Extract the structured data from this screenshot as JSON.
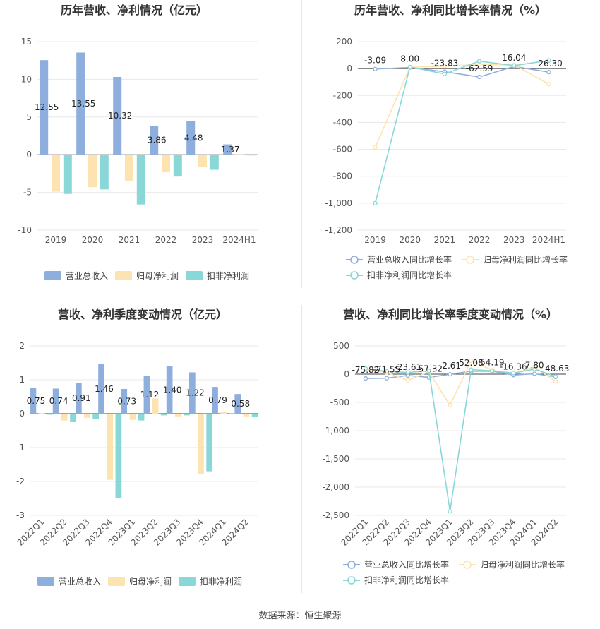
{
  "footer": "数据来源：恒生聚源",
  "colors": {
    "revenue": "#8eaede",
    "net_profit": "#fde3b0",
    "deducted_profit": "#8ad7d7",
    "grid": "#e8e8e8",
    "axis": "#555555"
  },
  "chart_data": [
    {
      "type": "bar",
      "title": "历年营收、净利情况（亿元）",
      "categories": [
        "2019",
        "2020",
        "2021",
        "2022",
        "2023",
        "2024H1"
      ],
      "series": [
        {
          "name": "营业总收入",
          "values": [
            12.55,
            13.55,
            10.32,
            3.86,
            4.48,
            1.37
          ],
          "labels": [
            "12.55",
            "13.55",
            "10.32",
            "3.86",
            "4.48",
            "1.37"
          ]
        },
        {
          "name": "归母净利润",
          "values": [
            -4.9,
            -4.3,
            -3.5,
            -2.3,
            -1.6,
            0.05
          ]
        },
        {
          "name": "扣非净利润",
          "values": [
            -5.2,
            -4.6,
            -6.6,
            -2.9,
            -2.0,
            -0.05
          ]
        }
      ],
      "ylim": [
        -10,
        15
      ],
      "yticks": [
        "-10",
        "-5",
        "0",
        "5",
        "10",
        "15"
      ],
      "legend": [
        "营业总收入",
        "归母净利润",
        "扣非净利润"
      ]
    },
    {
      "type": "line",
      "title": "历年营收、净利同比增长率情况（%）",
      "categories": [
        "2019",
        "2020",
        "2021",
        "2022",
        "2023",
        "2024H1"
      ],
      "series": [
        {
          "name": "营业总收入同比增长率",
          "values": [
            -3.09,
            8.0,
            -23.83,
            -62.59,
            16.04,
            -26.3
          ],
          "labels": [
            "-3.09",
            "8.00",
            "-23.83",
            "-62.59",
            "16.04",
            "-26.30"
          ]
        },
        {
          "name": "归母净利润同比增长率",
          "values": [
            -585,
            10,
            18,
            30,
            27,
            -115
          ]
        },
        {
          "name": "扣非净利润同比增长率",
          "values": [
            -1000,
            12,
            -40,
            55,
            22,
            60
          ]
        }
      ],
      "ylim": [
        -1200,
        200
      ],
      "yticks": [
        "-1,200",
        "-1,000",
        "-800",
        "-600",
        "-400",
        "-200",
        "0",
        "200"
      ],
      "legend": [
        "营业总收入同比增长率",
        "归母净利润同比增长率",
        "扣非净利润同比增长率"
      ]
    },
    {
      "type": "bar",
      "title": "营收、净利季度变动情况（亿元）",
      "categories": [
        "2022Q1",
        "2022Q2",
        "2022Q3",
        "2022Q4",
        "2023Q1",
        "2023Q2",
        "2023Q3",
        "2023Q4",
        "2024Q1",
        "2024Q2"
      ],
      "series": [
        {
          "name": "营业总收入",
          "values": [
            0.75,
            0.74,
            0.91,
            1.46,
            0.73,
            1.12,
            1.4,
            1.22,
            0.79,
            0.58
          ],
          "labels": [
            "0.75",
            "0.74",
            "0.91",
            "1.46",
            "0.73",
            "1.12",
            "1.40",
            "1.22",
            "0.79",
            "0.58"
          ]
        },
        {
          "name": "归母净利润",
          "values": [
            0.02,
            -0.2,
            -0.12,
            -1.95,
            -0.18,
            0.45,
            -0.08,
            -1.77,
            0.05,
            -0.08
          ]
        },
        {
          "name": "扣非净利润",
          "values": [
            -0.03,
            -0.25,
            -0.15,
            -2.5,
            -0.2,
            -0.05,
            -0.05,
            -1.7,
            0.02,
            -0.1
          ]
        }
      ],
      "ylim": [
        -3,
        2
      ],
      "yticks": [
        "-3",
        "-2",
        "-1",
        "0",
        "1",
        "2"
      ],
      "legend": [
        "营业总收入",
        "归母净利润",
        "扣非净利润"
      ]
    },
    {
      "type": "line",
      "title": "营收、净利同比增长率季度变动情况（%）",
      "categories": [
        "2022Q1",
        "2022Q2",
        "2022Q3",
        "2022Q4",
        "2023Q1",
        "2023Q2",
        "2023Q3",
        "2023Q4",
        "2024Q1",
        "2024Q2"
      ],
      "series": [
        {
          "name": "营业总收入同比增长率",
          "values": [
            -75.82,
            -71.55,
            -23.61,
            -57.32,
            -2.61,
            52.08,
            54.19,
            -16.36,
            7.8,
            -48.63
          ],
          "labels": [
            "-75.82",
            "-71.55",
            "-23.61",
            "-57.32",
            "-2.61",
            "52.08",
            "54.19",
            "-16.36",
            "7.80",
            "-48.63"
          ]
        },
        {
          "name": "归母净利润同比增长率",
          "values": [
            90,
            30,
            -110,
            40,
            -550,
            240,
            70,
            10,
            130,
            -130
          ]
        },
        {
          "name": "扣非净利润同比增长率",
          "values": [
            100,
            50,
            30,
            60,
            -2430,
            80,
            60,
            20,
            90,
            -40
          ]
        }
      ],
      "ylim": [
        -2500,
        500
      ],
      "yticks": [
        "-2,500",
        "-2,000",
        "-1,500",
        "-1,000",
        "-500",
        "0",
        "500"
      ],
      "legend": [
        "营业总收入同比增长率",
        "归母净利润同比增长率",
        "扣非净利润同比增长率"
      ]
    }
  ]
}
